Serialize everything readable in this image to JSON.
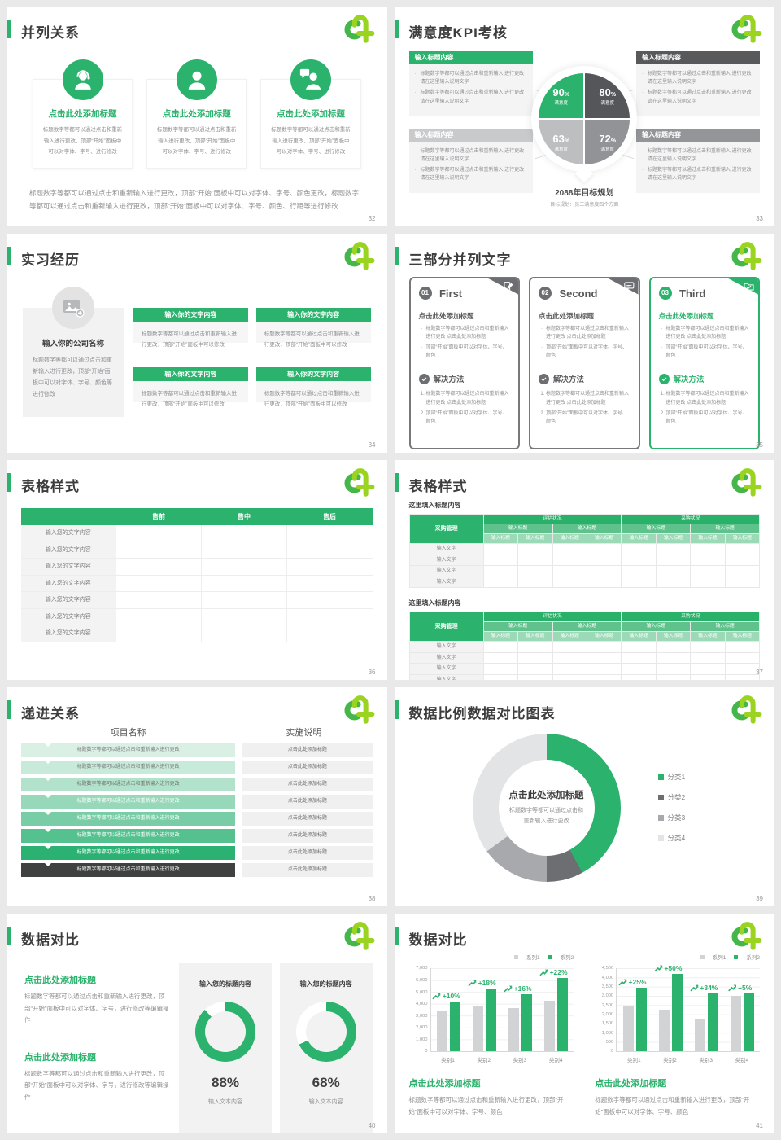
{
  "colors": {
    "green": "#2bb26d",
    "logo_green": "#45b649",
    "logo_lime": "#9ad420",
    "dark_gray": "#58595b",
    "mid_gray": "#939598",
    "light_gray": "#c9cacb",
    "bar_gray": "#d1d3d4"
  },
  "slides": {
    "s32": {
      "page": "32",
      "title": "并列关系",
      "card_heading": "点击此处添加标题",
      "card_body": "标题数字等都可以通过点击和重新输入进行更改，顶部“开始”面板中可以对字体、字号、进行修改",
      "cards": [
        {
          "icon": "person-headset-icon"
        },
        {
          "icon": "person-icon"
        },
        {
          "icon": "person-presentation-icon"
        }
      ],
      "footer": "标题数字等都可以通过点击和重新输入进行更改，顶部“开始”面板中可以对字体、字号、颜色更改，标题数字等都可以通过点击和重新输入进行更改，顶部“开始”面板中可以对字体、字号、颜色、行距等进行修改"
    },
    "s33": {
      "page": "33",
      "title": "满意度KPI考核",
      "box_title": "输入标题内容",
      "bullet": "标题数字等都可以通过点击和重新输入 进行更改 请在这里输入说明文字",
      "box_colors": [
        "#2bb26d",
        "#58595b",
        "#c9cacb",
        "#939598"
      ],
      "caption": "2088年目标规划",
      "caption_sub": "目标规划：员工满意度四个方面"
    },
    "s34": {
      "page": "34",
      "title": "实习经历",
      "company_title": "输入你的公司名称",
      "company_body": "标题数字等都可以通过点击和重新输入进行更改，顶部“开始”面板中可以对字体、字号、颜色等进行修改",
      "box_title": "输入你的文字内容",
      "box_body": "标题数字等都可以通过点击和重新输入进行更改，顶部“开始”面板中可以修改"
    },
    "s35": {
      "page": "35",
      "title": "三部分并列文字",
      "heading": "点击此处添加标题",
      "bullet1": "标题数字等都可以通过点击和重新输入进行更改 点击此处添加标题",
      "bullet2": "顶部“开始”面板中可以对字体、字号、颜色",
      "solution_label": "解决方法",
      "step1": "标题数字等都可以通过点击和重新输入进行更改 点击此处添加标题",
      "step2": "顶部“开始”面板中可以对字体、字号、颜色",
      "cards": [
        {
          "num": "01",
          "name": "First",
          "accent": "#6d6e71",
          "border": "#77787b",
          "heading_color": "#58595b",
          "tab_icon": "clipboard-pencil-icon"
        },
        {
          "num": "02",
          "name": "Second",
          "accent": "#6d6e71",
          "border": "#77787b",
          "heading_color": "#58595b",
          "tab_icon": "chat-bubble-icon"
        },
        {
          "num": "03",
          "name": "Third",
          "accent": "#2bb26d",
          "border": "#2bb26d",
          "heading_color": "#2bb26d",
          "tab_icon": "folder-check-icon"
        }
      ]
    },
    "s36": {
      "page": "36",
      "title": "表格样式",
      "headers": [
        "售前",
        "售中",
        "售后"
      ],
      "row_label": "输入您的文字内容",
      "row_count": 7
    },
    "s37": {
      "page": "37",
      "title": "表格样式",
      "section_label": "这里填入标题内容",
      "corner": "采购管理",
      "group1": "评估状况",
      "group2": "采购状况",
      "mid_header": "输入标题",
      "sub_header": "输入标题",
      "row_label": "输入文字"
    },
    "s38": {
      "page": "38",
      "title": "递进关系",
      "col1_header": "项目名称",
      "col2_header": "实施说明",
      "left_text": "标题数字等都可以通过点击和重新输入进行更改",
      "right_text": "点击此处添加标题",
      "rows": [
        {
          "bg": "#daf0e5",
          "fg": "#7a7a7a"
        },
        {
          "bg": "#c8eadb",
          "fg": "#7a7a7a"
        },
        {
          "bg": "#b2e2cc",
          "fg": "#6f6f6f"
        },
        {
          "bg": "#97d8ba",
          "fg": "#ffffff"
        },
        {
          "bg": "#78cda6",
          "fg": "#ffffff"
        },
        {
          "bg": "#54c18f",
          "fg": "#ffffff"
        },
        {
          "bg": "#2bb273",
          "fg": "#ffffff"
        },
        {
          "bg": "#3f4040",
          "fg": "#ffffff"
        }
      ]
    },
    "s39": {
      "page": "39",
      "title": "数据比例数据对比图表"
    },
    "s40": {
      "page": "40",
      "title": "数据对比",
      "block_heading": "点击此处添加标题",
      "block_body": "标题数字等都可以通过点击和重新输入进行更改，顶部“开始”面板中可以对字体、字号，进行修改等编辑操作",
      "card_title": "输入您的标题内容",
      "card_caption": "输入文本内容",
      "card_values": [
        "88%",
        "68%"
      ]
    },
    "s41": {
      "page": "41",
      "title": "数据对比",
      "chart_heading": "点击此处添加标题",
      "chart_body": "标题数字等都可以通过点击和重新输入进行更改，顶部“开始”面板中可以对字体、字号、颜色"
    }
  },
  "chart_data": [
    {
      "type": "pie",
      "slide": 33,
      "title": "2088年目标规划",
      "subtitle": "目标规划：员工满意度四个方面",
      "slices": [
        {
          "value_label": "90",
          "unit": "%",
          "label": "满意度",
          "share": 25,
          "color": "#2bb26d"
        },
        {
          "value_label": "80",
          "unit": "%",
          "label": "满意度",
          "share": 25,
          "color": "#55565a"
        },
        {
          "value_label": "63",
          "unit": "%",
          "label": "满意度",
          "share": 25,
          "color": "#bcbec0"
        },
        {
          "value_label": "72",
          "unit": "%",
          "label": "满意度",
          "share": 25,
          "color": "#919396"
        }
      ]
    },
    {
      "type": "donut",
      "slide": 39,
      "legend": [
        "分类1",
        "分类2",
        "分类3",
        "分类4"
      ],
      "values": [
        42,
        8,
        15,
        35
      ],
      "colors": [
        "#2bb26d",
        "#6d6e71",
        "#a7a9ac",
        "#e3e4e5"
      ],
      "center_title": "点击此处添加标题",
      "center_text_line1": "标题数字等都可以通过点击和",
      "center_text_line2": "重新输入进行更改"
    },
    {
      "type": "gauge",
      "slide": 40,
      "value": 88,
      "label": "88%",
      "color": "#2bb26d",
      "track": "#ffffff"
    },
    {
      "type": "gauge",
      "slide": 40,
      "value": 68,
      "label": "68%",
      "color": "#2bb26d",
      "track": "#ffffff"
    },
    {
      "type": "bar",
      "slide": 41,
      "categories": [
        "类别1",
        "类别2",
        "类别3",
        "类别4"
      ],
      "series": [
        {
          "name": "系列1",
          "color": "#d1d3d4",
          "values": [
            3400,
            3800,
            3650,
            4300
          ]
        },
        {
          "name": "系列2",
          "color": "#2bb26d",
          "values": [
            4200,
            5300,
            4800,
            6200
          ]
        }
      ],
      "growth": [
        "+10%",
        "+18%",
        "+16%",
        "+22%"
      ],
      "ylim": [
        0,
        7000
      ],
      "yticks_desc": [
        "7,000",
        "6,000",
        "5,000",
        "4,000",
        "3,000",
        "2,000",
        "1,000",
        "0"
      ]
    },
    {
      "type": "bar",
      "slide": 41,
      "categories": [
        "类别1",
        "类别2",
        "类别3",
        "类别4"
      ],
      "series": [
        {
          "name": "系列1",
          "color": "#d1d3d4",
          "values": [
            2500,
            2250,
            1750,
            3000
          ]
        },
        {
          "name": "系列2",
          "color": "#2bb26d",
          "values": [
            3450,
            4200,
            3150,
            3150
          ]
        }
      ],
      "growth": [
        "+25%",
        "+50%",
        "+34%",
        "+5%"
      ],
      "ylim": [
        0,
        4500
      ],
      "yticks_desc": [
        "4,500",
        "4,000",
        "3,500",
        "3,000",
        "2,500",
        "2,000",
        "1,500",
        "1,000",
        "500",
        "0"
      ]
    }
  ]
}
